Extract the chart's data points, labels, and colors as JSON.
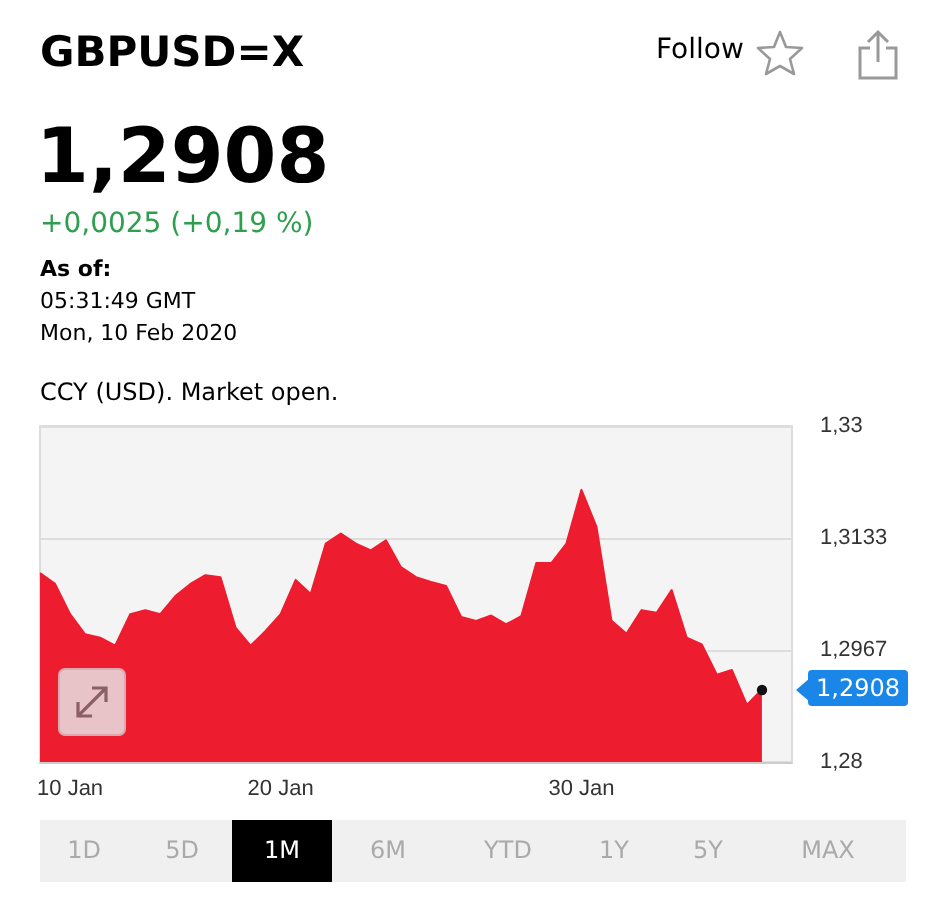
{
  "chart_data": {
    "type": "area",
    "title": "GBPUSD=X",
    "categories": [
      null,
      null,
      "10 Jan",
      null,
      null,
      null,
      null,
      null,
      null,
      null,
      null,
      null,
      null,
      null,
      null,
      null,
      "20 Jan",
      null,
      null,
      null,
      null,
      null,
      null,
      null,
      null,
      null,
      null,
      null,
      null,
      null,
      null,
      null,
      null,
      null,
      null,
      null,
      "30 Jan",
      null,
      null,
      null,
      null,
      null,
      null,
      null,
      null,
      null,
      null,
      null,
      null,
      null,
      null
    ],
    "series": [
      {
        "color": "#ed1c2e",
        "values": [
          1.3081,
          1.3065,
          1.302,
          1.299,
          1.2985,
          1.2973,
          1.302,
          1.3026,
          1.302,
          1.3047,
          1.3065,
          1.3078,
          1.3075,
          1.3,
          1.2973,
          1.2995,
          1.302,
          1.3071,
          1.305,
          1.3125,
          1.314,
          1.3125,
          1.3115,
          1.313,
          1.309,
          1.3075,
          1.3068,
          1.3062,
          1.3016,
          1.301,
          1.3018,
          1.3005,
          1.3017,
          1.3096,
          1.3096,
          1.3125,
          1.3205,
          1.315,
          1.301,
          1.2991,
          1.3026,
          1.3022,
          1.3056,
          1.2985,
          1.2975,
          1.293,
          1.2937,
          1.2885,
          1.2908,
          null,
          null
        ]
      }
    ],
    "ylim": [
      1.28,
      1.33
    ],
    "yticks": [
      {
        "value": 1.28,
        "label": "1,28"
      },
      {
        "value": 1.2967,
        "label": "1,2967"
      },
      {
        "value": 1.3133,
        "label": "1,3133"
      },
      {
        "value": 1.33,
        "label": "1,33"
      }
    ],
    "grid": "y",
    "marker": "none",
    "annotations": [
      "Follow",
      "1,2908",
      "+0,0025 (+0,19 %)",
      "As of:",
      "05:31:49 GMT",
      "Mon, 10 Feb 2020",
      "CCY (USD). Market open.",
      "1D",
      "5D",
      "1M",
      "6M",
      "YTD",
      "1Y",
      "5Y",
      "MAX",
      "1,2908"
    ]
  }
}
